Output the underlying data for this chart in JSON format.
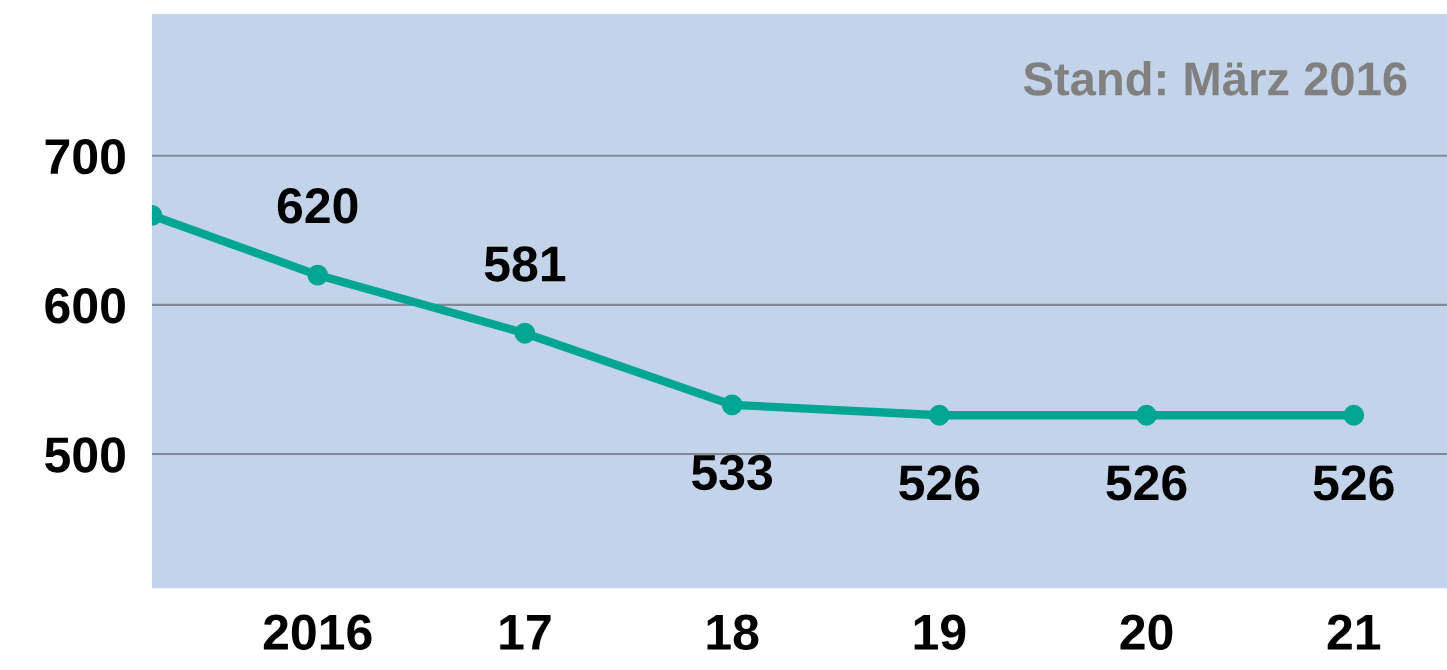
{
  "chart_data": {
    "type": "line",
    "x": [
      2015.2,
      2016,
      2017,
      2018,
      2019,
      2020,
      2021
    ],
    "series": [
      {
        "color": "#00a693",
        "values": [
          660,
          620,
          581,
          533,
          526,
          526,
          526
        ],
        "value_labels": [
          null,
          "620",
          "581",
          "533",
          "526",
          "526",
          "526"
        ]
      }
    ],
    "xlim": [
      2015.2,
      2021.45
    ],
    "ylim": [
      410,
      795
    ],
    "xticks": [
      {
        "value": 2016,
        "label": "2016"
      },
      {
        "value": 2017,
        "label": "17"
      },
      {
        "value": 2018,
        "label": "18"
      },
      {
        "value": 2019,
        "label": "19"
      },
      {
        "value": 2020,
        "label": "20"
      },
      {
        "value": 2021,
        "label": "21"
      }
    ],
    "yticks": [
      500,
      600,
      700
    ],
    "grid": "y",
    "marker": "circle",
    "line_style": "solid",
    "annotations": [
      "Stand: März 2016"
    ]
  }
}
